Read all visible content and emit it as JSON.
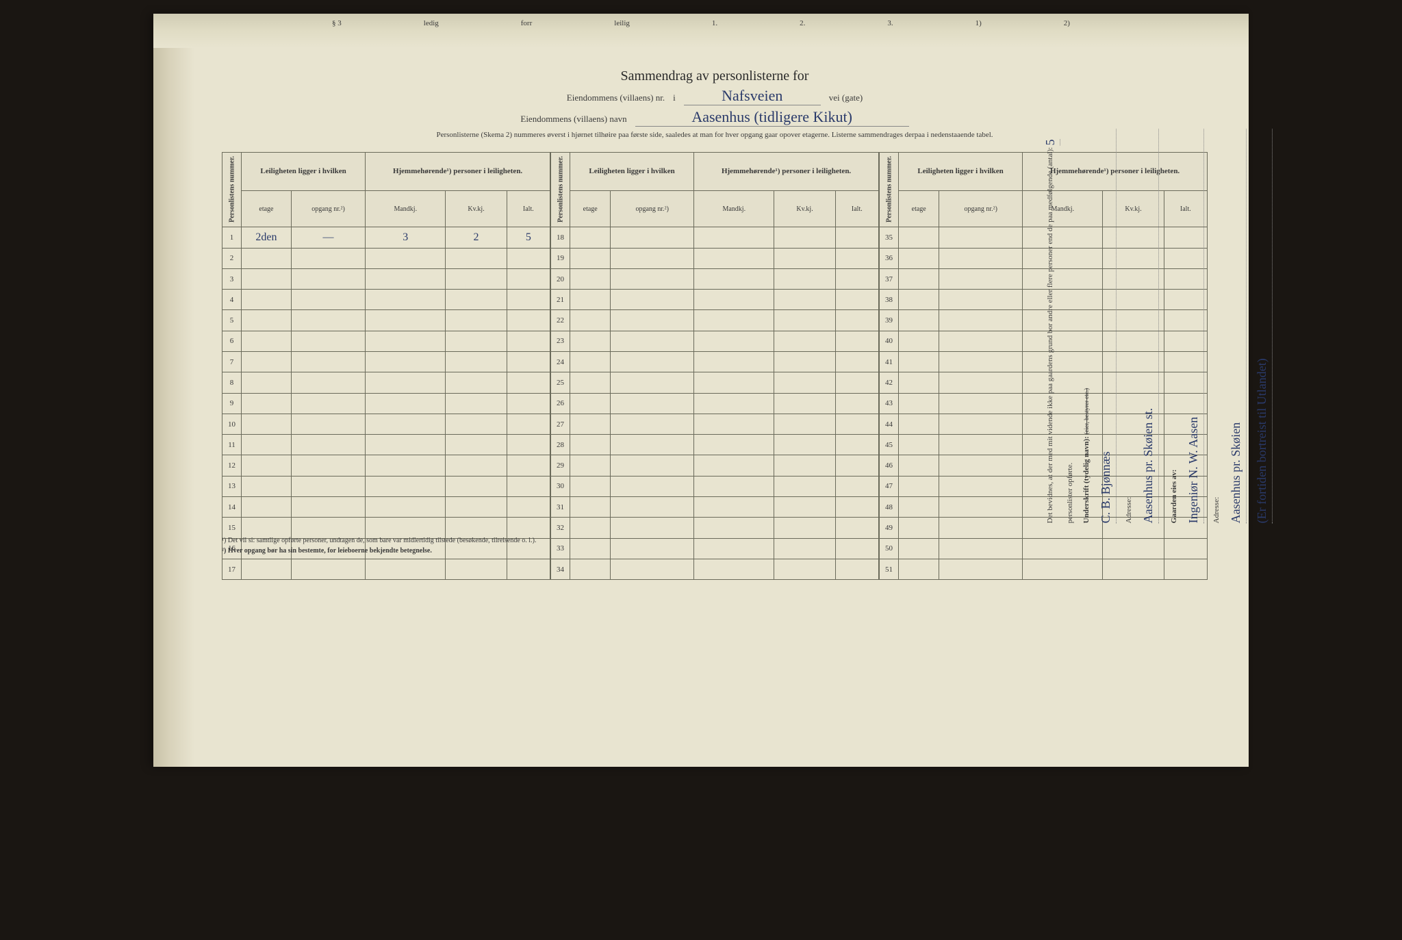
{
  "background_color": "#e8e4d0",
  "ink_color": "#3a3a3a",
  "handwriting_color": "#2a3a6a",
  "top_fold_labels": [
    "§ 3",
    "ledig",
    "forr",
    "leilig",
    "1.",
    "2.",
    "3.",
    "1)",
    "2)"
  ],
  "header": {
    "title": "Sammendrag av personlisterne for",
    "line1_label": "Eiendommens (villaens) nr.",
    "line1_mid": "i",
    "line1_value": "Nafsveien",
    "line1_suffix": "vei (gate)",
    "line2_label": "Eiendommens (villaens) navn",
    "line2_value": "Aasenhus (tidligere Kikut)",
    "instruction": "Personlisterne (Skema 2) nummeres øverst i hjørnet tilhøire paa første side, saaledes at man for hver opgang gaar opover etagerne. Listerne sammendrages derpaa i nedenstaaende tabel."
  },
  "table": {
    "vert_header": "Personlistens nummer.",
    "group1": "Leiligheten ligger i hvilken",
    "group2": "Hjemmehørende¹) personer i leiligheten.",
    "sub_etage": "etage",
    "sub_opgang": "opgang nr.²)",
    "sub_mandkj": "Mandkj.",
    "sub_kvkj": "Kv.kj.",
    "sub_ialt": "Ialt.",
    "blocks": [
      {
        "start": 1,
        "end": 17
      },
      {
        "start": 18,
        "end": 34
      },
      {
        "start": 35,
        "end": 51
      }
    ],
    "data": {
      "1": {
        "etage": "2den",
        "opgang": "—",
        "mandkj": "3",
        "kvkj": "2",
        "ialt": "5"
      }
    }
  },
  "footnotes": {
    "n1": "¹) Det vil si: samtlige opførte personer, undtagen de, som bare var midlertidig tilstede (besøkende, tilreisende o. l.).",
    "n2": "²) Hver opgang bør ha sin bestemte, for leieboerne bekjendte betegnelse."
  },
  "side": {
    "witness_text": "Det bevidnes, at der med mit vidende ikke paa gaardens grund bor andre eller flere personer end de paa medfølgende (antal):",
    "witness_count": "5",
    "witness_suffix": "personlister opførte.",
    "sig_label": "Underskrift (tydelig navn):",
    "sig_value": "C. B. Bjønnæs",
    "sig_strike": "(eier, bestyrer etc.)",
    "addr_label": "Adresse:",
    "addr_value": "Aasenhus pr. Skøien st.",
    "owner_label": "Gaarden eies av:",
    "owner_value": "Ingeniør N. W. Aasen",
    "owner_addr_label": "Adresse:",
    "owner_addr_value": "Aasenhus pr. Skøien",
    "owner_note": "(Er fortiden bortreist til Utlandet)"
  }
}
